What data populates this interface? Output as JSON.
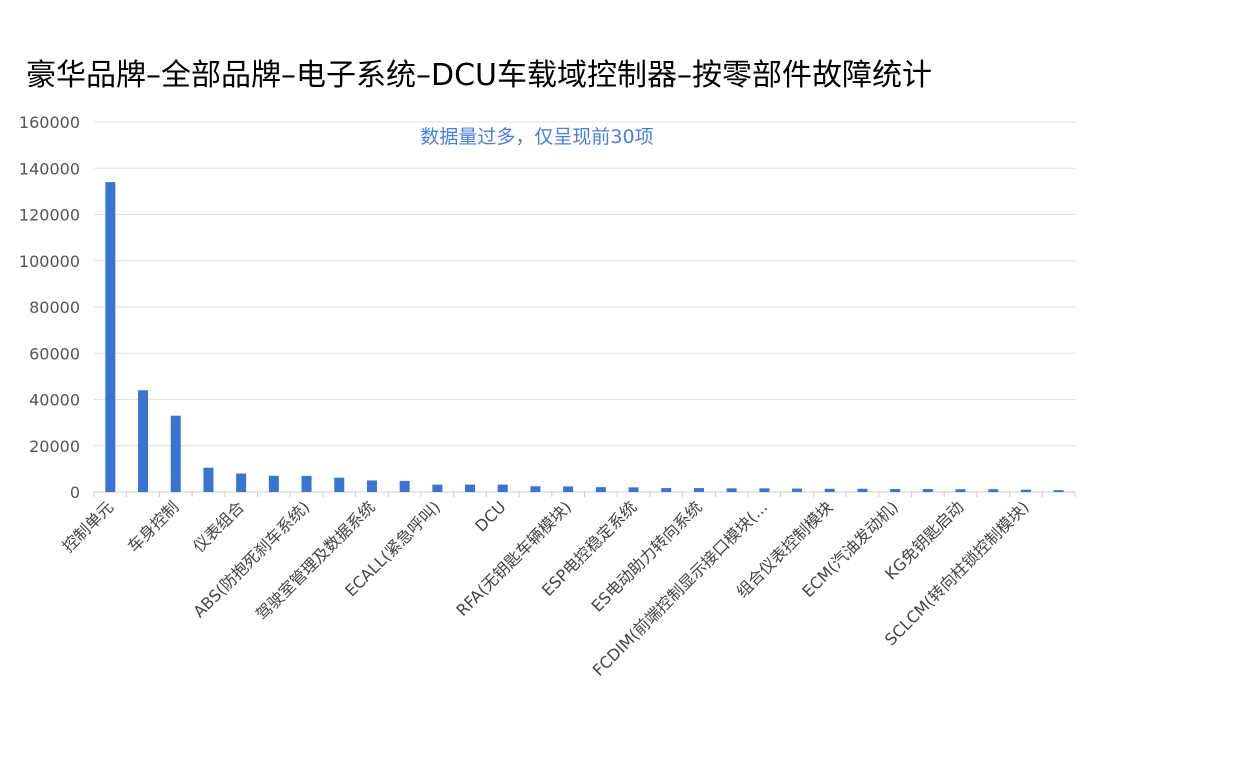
{
  "chart_data": {
    "type": "bar",
    "title": "豪华品牌–全部品牌–电子系统–DCU车载域控制器–按零部件故障统计",
    "annotation": "数据量过多，仅呈现前30项",
    "ylim": [
      0,
      160000
    ],
    "y_ticks": [
      "0",
      "20000",
      "40000",
      "60000",
      "80000",
      "100000",
      "120000",
      "140000",
      "160000"
    ],
    "grid": true,
    "bar_color": "#3a74d3",
    "annotation_color": "#4a80dc",
    "categories": [
      "控制单元",
      "",
      "车身控制",
      "",
      "仪表组合",
      "",
      "ABS(防抱死刹车系统)",
      "",
      "驾驶室管理及数据系统",
      "",
      "ECALL(紧急呼叫)",
      "",
      "DCU",
      "",
      "RFA(无钥匙车辆模块)",
      "",
      "ESP电控稳定系统",
      "",
      "ES电动助力转向系统",
      "",
      "FCDIM(前端控制显示接口模块(...",
      "",
      "组合仪表控制模块",
      "",
      "ECM(汽油发动机)",
      "",
      "KG免钥匙启动",
      "",
      "SCLCM(转向柱锁控制模块)",
      ""
    ],
    "values": [
      134000,
      44000,
      33000,
      10500,
      8000,
      7000,
      7000,
      6200,
      5000,
      4800,
      3200,
      3200,
      3200,
      2500,
      2400,
      2100,
      2000,
      1700,
      1700,
      1600,
      1600,
      1500,
      1400,
      1400,
      1300,
      1300,
      1200,
      1200,
      1000,
      800
    ]
  }
}
